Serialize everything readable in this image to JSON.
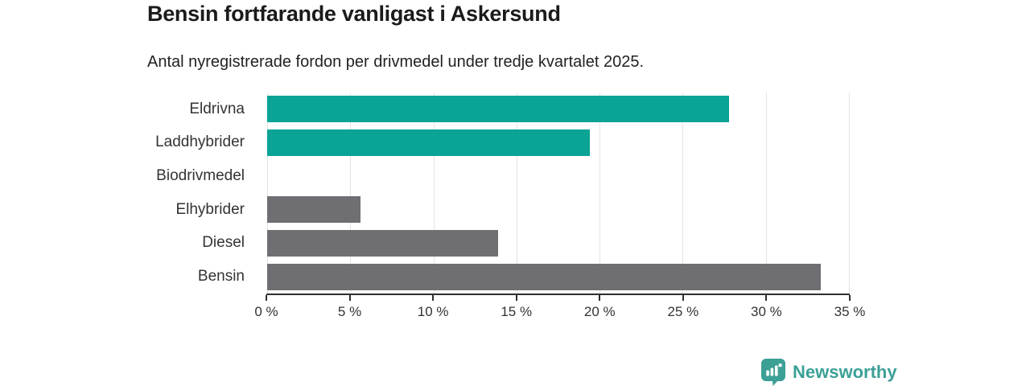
{
  "header": {
    "title": "Bensin fortfarande vanligast i Askersund",
    "subtitle": "Antal nyregistrerade fordon per drivmedel under tredje kvartalet 2025."
  },
  "chart_data": {
    "type": "bar",
    "orientation": "horizontal",
    "title": "Bensin fortfarande vanligast i Askersund",
    "subtitle": "Antal nyregistrerade fordon per drivmedel under tredje kvartalet 2025.",
    "categories": [
      "Eldrivna",
      "Laddhybrider",
      "Biodrivmedel",
      "Elhybrider",
      "Diesel",
      "Bensin"
    ],
    "values": [
      27.8,
      19.4,
      0,
      5.6,
      13.9,
      33.3
    ],
    "value_unit": "%",
    "bar_colors": [
      "#0aa396",
      "#0aa396",
      "#6f6e73",
      "#6f6e73",
      "#6f6e73",
      "#6f6e73"
    ],
    "highlight_color": "#0aa396",
    "default_color": "#6f6e73",
    "xlim": [
      0,
      35
    ],
    "xticks": [
      0,
      5,
      10,
      15,
      20,
      25,
      30,
      35
    ],
    "xtick_labels": [
      "0 %",
      "5 %",
      "10 %",
      "15 %",
      "20 %",
      "25 %",
      "30 %",
      "35 %"
    ],
    "xlabel": "",
    "ylabel": "",
    "grid": true,
    "legend": "none",
    "gridline_color": "#e4e4e4",
    "axis_color": "#2e2e2e",
    "label_color": "#333333"
  },
  "branding": {
    "logo_text": "Newsworthy",
    "logo_color": "#3da096",
    "logo_icon": "newsworthy-pin-chart-icon"
  }
}
